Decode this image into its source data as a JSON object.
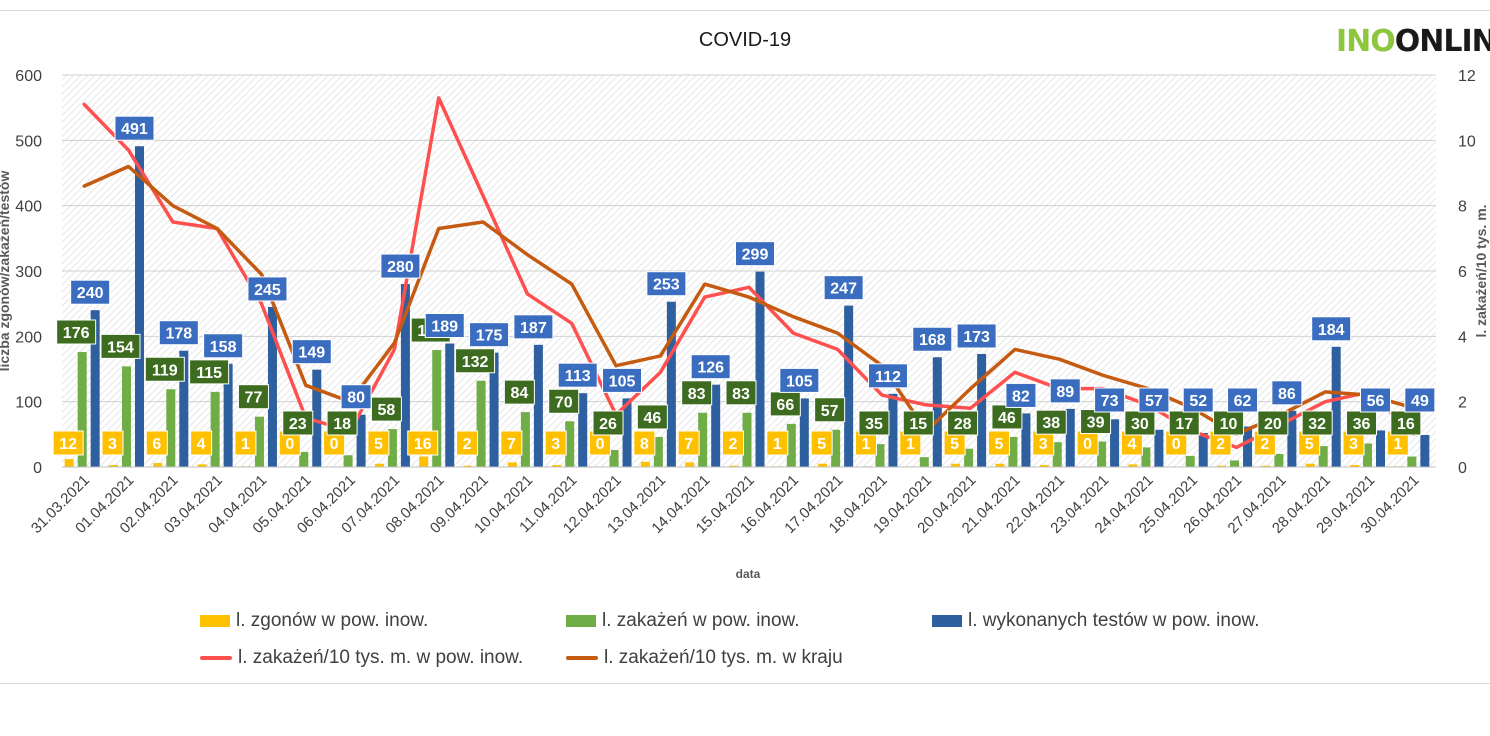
{
  "header": {
    "logo_part1": "INO",
    "logo_part2": "ONLIN"
  },
  "chart_data": {
    "type": "bar",
    "title": "COVID-19",
    "xlabel": "data",
    "ylabel": "liczba zgonów/zakażeń/testów",
    "y2label": "l. zakażeń/10 tys. m.",
    "ylim": [
      0,
      600
    ],
    "y2lim": [
      0,
      12
    ],
    "yticks": [
      0,
      100,
      200,
      300,
      400,
      500,
      600
    ],
    "y2ticks": [
      0,
      2,
      4,
      6,
      8,
      10,
      12
    ],
    "grid": true,
    "legend_position": "bottom",
    "categories": [
      "31.03.2021",
      "01.04.2021",
      "02.04.2021",
      "03.04.2021",
      "04.04.2021",
      "05.04.2021",
      "06.04.2021",
      "07.04.2021",
      "08.04.2021",
      "09.04.2021",
      "10.04.2021",
      "11.04.2021",
      "12.04.2021",
      "13.04.2021",
      "14.04.2021",
      "15.04.2021",
      "16.04.2021",
      "17.04.2021",
      "18.04.2021",
      "19.04.2021",
      "20.04.2021",
      "21.04.2021",
      "22.04.2021",
      "23.04.2021",
      "24.04.2021",
      "25.04.2021",
      "26.04.2021",
      "27.04.2021",
      "28.04.2021",
      "29.04.2021",
      "30.04.2021"
    ],
    "series": [
      {
        "name": "l. zgonów w pow. inow.",
        "kind": "bar",
        "axis": "left",
        "color": "#ffc000",
        "label_bg": "#ffc000",
        "values": [
          12,
          3,
          6,
          4,
          1,
          0,
          0,
          5,
          16,
          2,
          7,
          3,
          0,
          8,
          7,
          2,
          1,
          5,
          1,
          1,
          5,
          5,
          3,
          0,
          4,
          0,
          2,
          2,
          5,
          3,
          1
        ]
      },
      {
        "name": "l. zakażeń w pow. inow.",
        "kind": "bar",
        "axis": "left",
        "color": "#70ad47",
        "label_bg": "#3d6b1f",
        "values": [
          176,
          154,
          119,
          115,
          77,
          23,
          18,
          58,
          179,
          132,
          84,
          70,
          26,
          46,
          83,
          83,
          66,
          57,
          35,
          15,
          28,
          46,
          38,
          39,
          30,
          17,
          10,
          20,
          32,
          36,
          16
        ]
      },
      {
        "name": "l. wykonanych testów w pow. inow.",
        "kind": "bar",
        "axis": "left",
        "color": "#2e5f9e",
        "label_bg": "#3a6dbf",
        "values": [
          240,
          491,
          178,
          158,
          245,
          149,
          80,
          280,
          189,
          175,
          187,
          113,
          105,
          253,
          126,
          299,
          105,
          247,
          112,
          168,
          173,
          82,
          89,
          73,
          57,
          52,
          62,
          86,
          184,
          56,
          49
        ]
      },
      {
        "name": "l. zakażeń/10 tys. m. w pow. inow.",
        "kind": "line",
        "axis": "right",
        "color": "#ff5050",
        "values": [
          11.1,
          9.7,
          7.5,
          7.3,
          5.0,
          1.5,
          1.1,
          3.6,
          11.3,
          8.3,
          5.3,
          4.4,
          1.6,
          2.9,
          5.2,
          5.5,
          4.1,
          3.6,
          2.2,
          1.9,
          1.8,
          2.9,
          2.4,
          2.4,
          1.9,
          1.1,
          0.6,
          1.3,
          2.0,
          2.3,
          1.0
        ]
      },
      {
        "name": "l. zakażeń/10 tys. m. w kraju",
        "kind": "line",
        "axis": "right",
        "color": "#c55a11",
        "values": [
          8.6,
          9.2,
          8.0,
          7.3,
          5.9,
          2.5,
          2.0,
          3.8,
          7.3,
          7.5,
          6.5,
          5.6,
          3.1,
          3.4,
          5.6,
          5.2,
          4.6,
          4.1,
          3.1,
          1.1,
          2.4,
          3.6,
          3.3,
          2.8,
          2.4,
          1.8,
          1.0,
          1.6,
          2.3,
          2.2,
          1.8
        ]
      }
    ]
  }
}
